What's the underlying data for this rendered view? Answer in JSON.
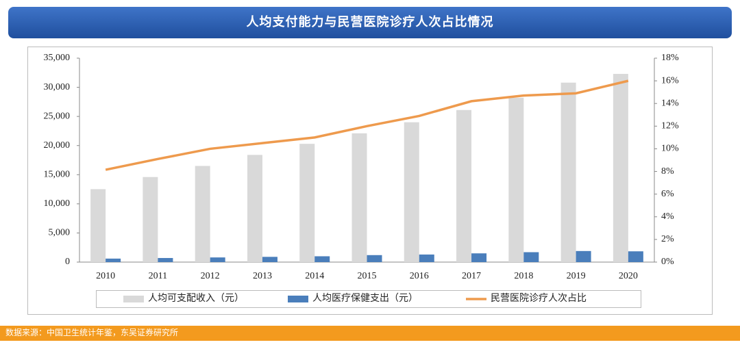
{
  "header": {
    "title": "人均支付能力与民营医院诊疗人次占比情况"
  },
  "chart_data": {
    "type": "combo",
    "categories": [
      "2010",
      "2011",
      "2012",
      "2013",
      "2014",
      "2015",
      "2016",
      "2017",
      "2018",
      "2019",
      "2020"
    ],
    "series": [
      {
        "name": "人均可支配收入（元）",
        "type": "bar",
        "color": "#d9d9d9",
        "values": [
          12520,
          14600,
          16500,
          18400,
          20300,
          22100,
          24000,
          26100,
          28200,
          30800,
          32300
        ]
      },
      {
        "name": "人均医疗保健支出（元）",
        "type": "bar",
        "color": "#4a7ebb",
        "values": [
          600,
          700,
          800,
          900,
          1000,
          1200,
          1300,
          1500,
          1700,
          1900,
          1850
        ]
      },
      {
        "name": "民营医院诊疗人次占比",
        "type": "line",
        "axis": "y2",
        "color": "#ee9a4d",
        "values": [
          8.15,
          9.1,
          10.0,
          10.5,
          11.0,
          12.0,
          12.9,
          14.2,
          14.7,
          14.9,
          16.0
        ]
      }
    ],
    "ylim": [
      0,
      35000
    ],
    "yticks": [
      0,
      {
        "value": 5000,
        "label": "5,000"
      },
      {
        "value": 10000,
        "label": "10,000"
      },
      {
        "value": 15000,
        "label": "15,000"
      },
      {
        "value": 20000,
        "label": "20,000"
      },
      {
        "value": 25000,
        "label": "25,000"
      },
      {
        "value": 30000,
        "label": "30,000"
      },
      {
        "value": 35000,
        "label": "35,000"
      }
    ],
    "y2lim": [
      0,
      18
    ],
    "y2ticks": [
      {
        "value": 0,
        "label": "0%"
      },
      {
        "value": 2,
        "label": "2%"
      },
      {
        "value": 4,
        "label": "4%"
      },
      {
        "value": 6,
        "label": "6%"
      },
      {
        "value": 8,
        "label": "8%"
      },
      {
        "value": 10,
        "label": "10%"
      },
      {
        "value": 12,
        "label": "12%"
      },
      {
        "value": 14,
        "label": "14%"
      },
      {
        "value": 16,
        "label": "16%"
      },
      {
        "value": 18,
        "label": "18%"
      }
    ],
    "legend": "bottom"
  },
  "footer": {
    "source": "数据来源：中国卫生统计年鉴，东吴证券研究所"
  }
}
